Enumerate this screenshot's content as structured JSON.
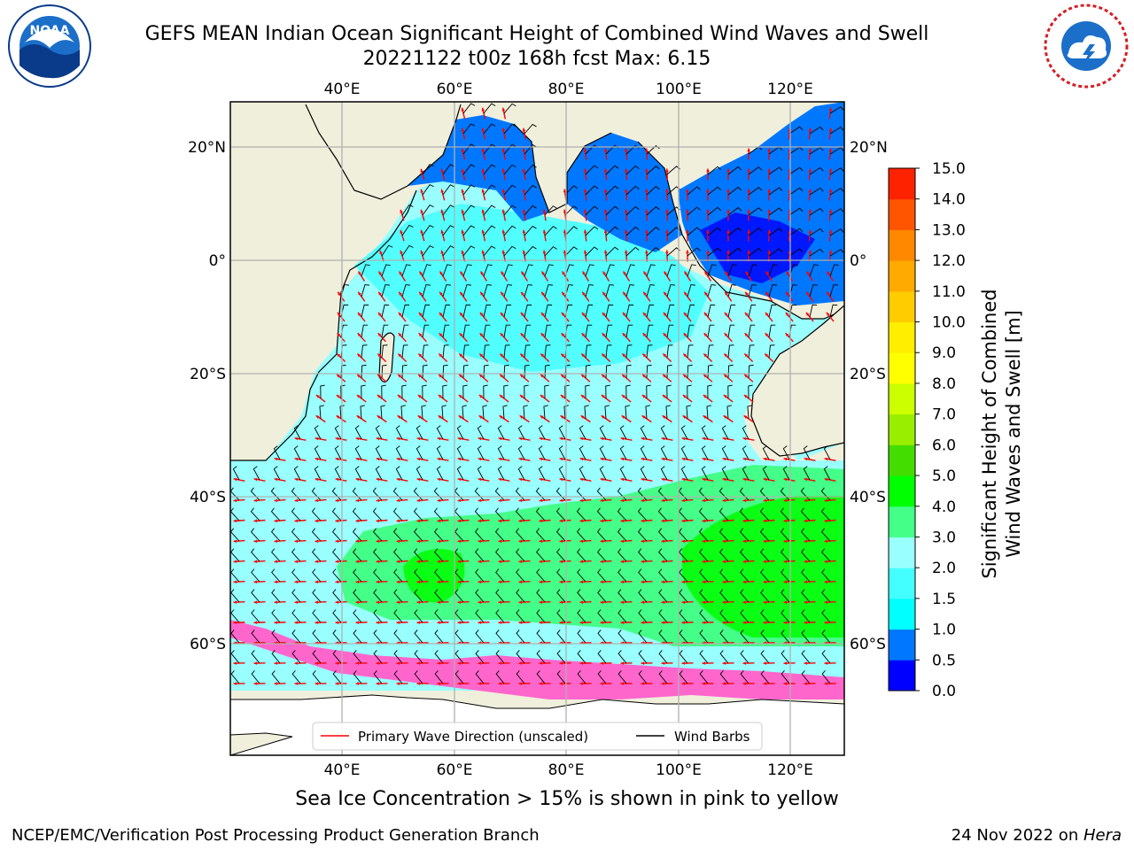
{
  "title_line1": "GEFS MEAN Indian Ocean Significant Height of Combined Wind Waves and Swell",
  "title_line2": "20221122 t00z 168h fcst   Max: 6.15",
  "logo_left_icon": "noaa-logo-icon",
  "logo_right_icon": "national-weather-service-logo-icon",
  "map": {
    "lon_ticks": [
      "40°E",
      "60°E",
      "80°E",
      "100°E",
      "120°E"
    ],
    "lat_ticks": [
      "20°N",
      "0°",
      "20°S",
      "40°S",
      "60°S"
    ],
    "legend": {
      "primary_wave": "Primary Wave Direction (unscaled)",
      "wind_barbs": "Wind Barbs",
      "primary_wave_color": "#ff0000",
      "wind_barbs_color": "#000000"
    },
    "land_color": "#efefdc",
    "ice_color": "#ff66cc"
  },
  "colorbar": {
    "title_line1": "Significant Height of Combined",
    "title_line2": "Wind Waves and Swell [m]",
    "ticks": [
      "0.0",
      "0.5",
      "1.0",
      "1.5",
      "2.0",
      "3.0",
      "4.0",
      "5.0",
      "6.0",
      "7.0",
      "8.0",
      "9.0",
      "10.0",
      "11.0",
      "12.0",
      "13.0",
      "14.0",
      "15.0"
    ],
    "colors": [
      "#0000ff",
      "#0077ff",
      "#00ffff",
      "#44ffff",
      "#99ffff",
      "#44ff88",
      "#00ff00",
      "#44dd00",
      "#99ee00",
      "#ccff00",
      "#ffff00",
      "#ffee00",
      "#ffcc00",
      "#ffaa00",
      "#ff8800",
      "#ff5500",
      "#ff2200"
    ]
  },
  "caption": "Sea Ice Concentration > 15% is shown in pink to yellow",
  "footer_left": "NCEP/EMC/Verification Post Processing Product Generation Branch",
  "footer_right_prefix": "24 Nov 2022 on ",
  "footer_right_host": "Hera"
}
